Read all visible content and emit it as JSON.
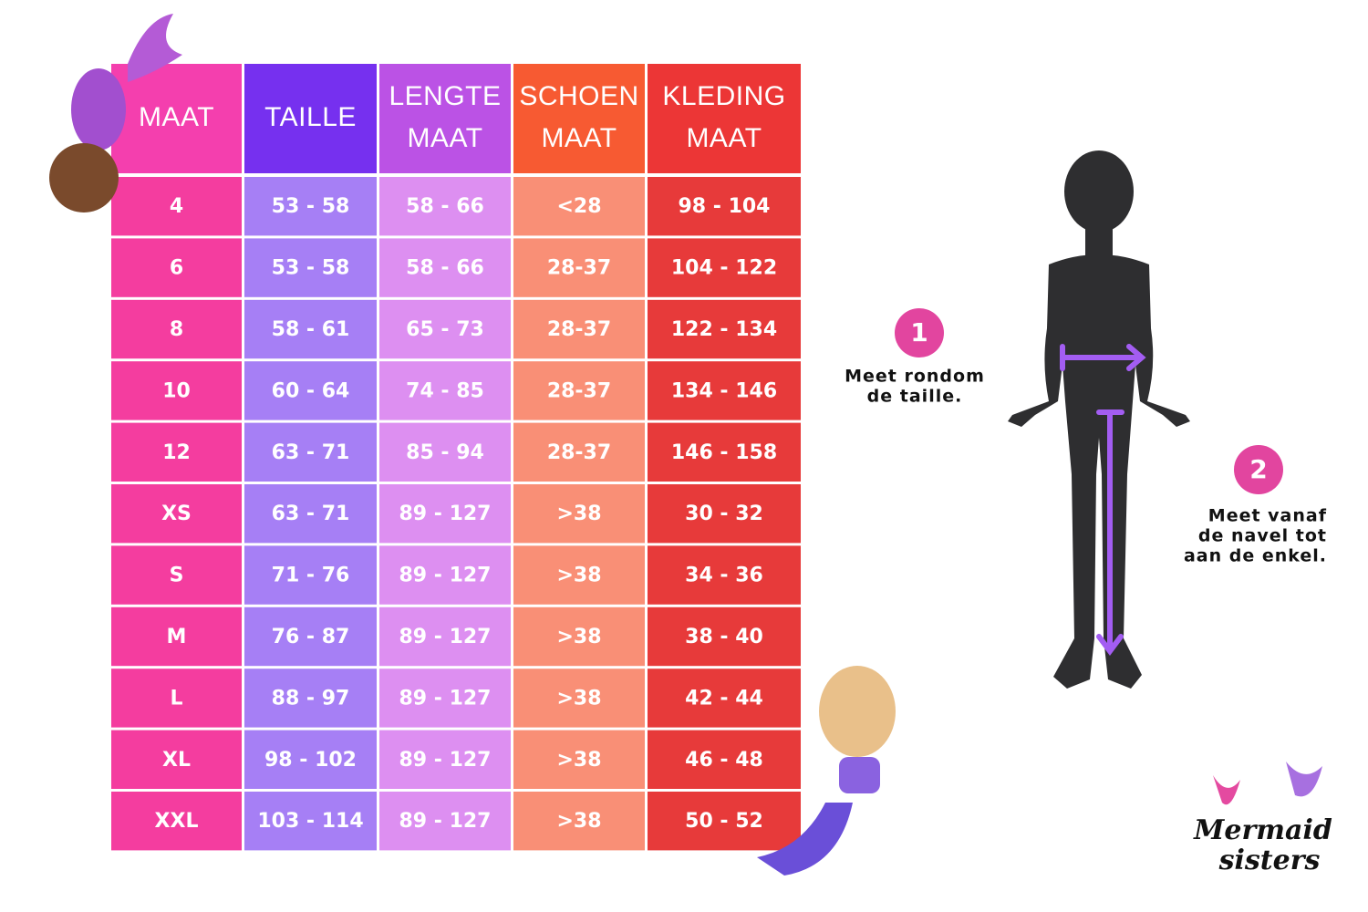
{
  "table": {
    "header": [
      [
        "MAAT"
      ],
      [
        "TAILLE"
      ],
      [
        "LENGTE",
        "MAAT"
      ],
      [
        "SCHOEN",
        "MAAT"
      ],
      [
        "KLEDING",
        "MAAT"
      ]
    ],
    "rows": [
      [
        "4",
        "53 - 58",
        "58 - 66",
        "<28",
        "98 - 104"
      ],
      [
        "6",
        "53 - 58",
        "58 - 66",
        "28-37",
        "104 - 122"
      ],
      [
        "8",
        "58 - 61",
        "65 - 73",
        "28-37",
        "122 - 134"
      ],
      [
        "10",
        "60 - 64",
        "74 - 85",
        "28-37",
        "134 - 146"
      ],
      [
        "12",
        "63 - 71",
        "85 - 94",
        "28-37",
        "146 - 158"
      ],
      [
        "XS",
        "63 - 71",
        "89 - 127",
        ">38",
        "30 - 32"
      ],
      [
        "S",
        "71 - 76",
        "89 - 127",
        ">38",
        "34 - 36"
      ],
      [
        "M",
        "76 - 87",
        "89 - 127",
        ">38",
        "38 - 40"
      ],
      [
        "L",
        "88 - 97",
        "89 - 127",
        ">38",
        "42 - 44"
      ],
      [
        "XL",
        "98 - 102",
        "89 - 127",
        ">38",
        "46 - 48"
      ],
      [
        "XXL",
        "103 - 114",
        "89 - 127",
        ">38",
        "50 - 52"
      ]
    ]
  },
  "steps": [
    {
      "number": "1",
      "lines": [
        "Meet rondom",
        "de taille."
      ]
    },
    {
      "number": "2",
      "lines": [
        "Meet vanaf",
        "de navel tot",
        "aan de enkel."
      ]
    }
  ],
  "logo": [
    "Mermaid",
    "sisters"
  ]
}
